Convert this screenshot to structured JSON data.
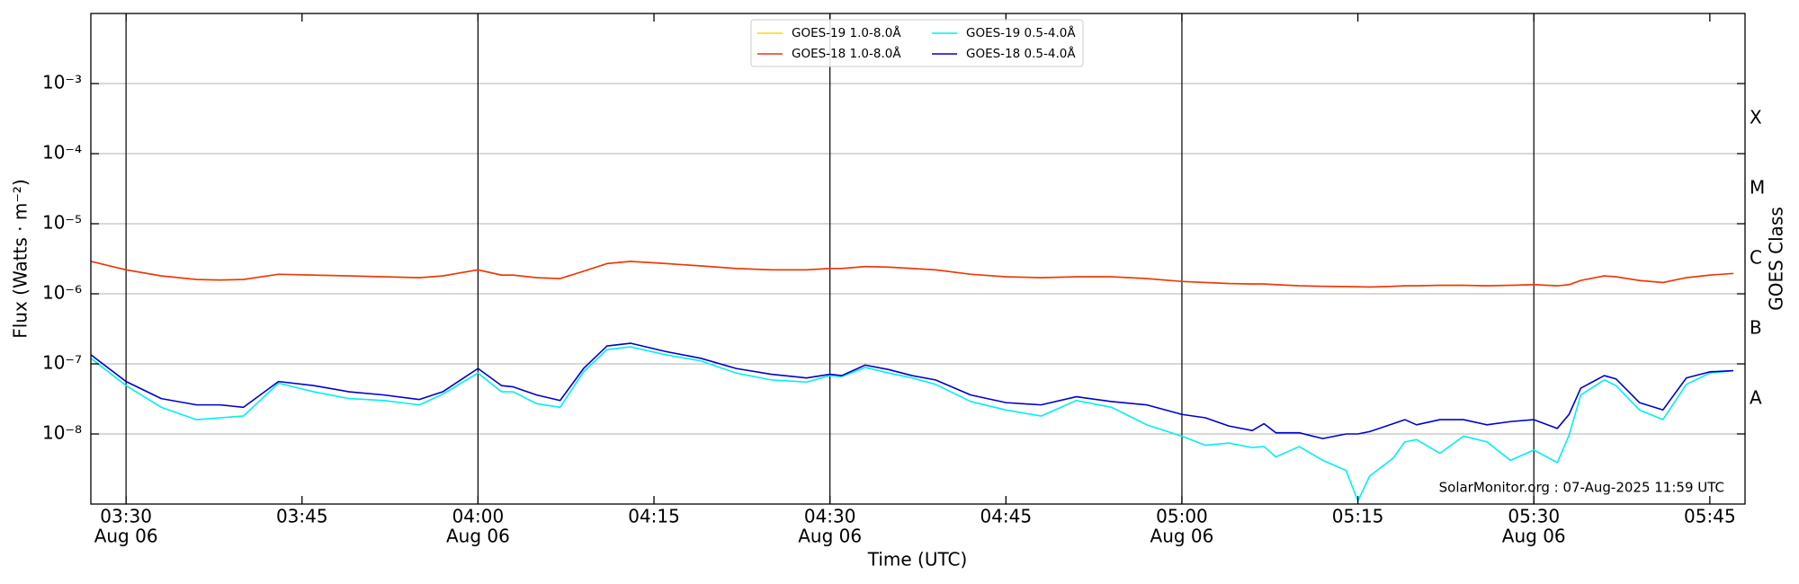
{
  "chart_data": {
    "type": "line",
    "xlabel": "Time (UTC)",
    "ylabel": "Flux (Watts · m⁻²)",
    "y2label": "GOES Class",
    "annotation": "SolarMonitor.org : 07-Aug-2025 11:59 UTC",
    "log_y": true,
    "grid": true,
    "legend": "upper center",
    "xlim": [
      "03:27",
      "05:48"
    ],
    "xticks": [
      {
        "value": "03:30",
        "label": "03:30",
        "date": "Aug 06"
      },
      {
        "value": "03:45",
        "label": "03:45"
      },
      {
        "value": "04:00",
        "label": "04:00",
        "date": "Aug 06"
      },
      {
        "value": "04:15",
        "label": "04:15"
      },
      {
        "value": "04:30",
        "label": "04:30",
        "date": "Aug 06"
      },
      {
        "value": "04:45",
        "label": "04:45"
      },
      {
        "value": "05:00",
        "label": "05:00",
        "date": "Aug 06"
      },
      {
        "value": "05:15",
        "label": "05:15"
      },
      {
        "value": "05:30",
        "label": "05:30",
        "date": "Aug 06"
      },
      {
        "value": "05:45",
        "label": "05:45"
      }
    ],
    "ylim": [
      1e-09,
      0.01
    ],
    "yticks": [
      {
        "value": 1e-08,
        "label": "10⁻⁸"
      },
      {
        "value": 1e-07,
        "label": "10⁻⁷"
      },
      {
        "value": 1e-06,
        "label": "10⁻⁶"
      },
      {
        "value": 1e-05,
        "label": "10⁻⁵"
      },
      {
        "value": 0.0001,
        "label": "10⁻⁴"
      },
      {
        "value": 0.001,
        "label": "10⁻³"
      }
    ],
    "y2lim": [
      1e-09,
      0.01
    ],
    "y2ticks": [
      {
        "value": 3.16e-08,
        "label": "A"
      },
      {
        "value": 3.16e-07,
        "label": "B"
      },
      {
        "value": 3.16e-06,
        "label": "C"
      },
      {
        "value": 3.16e-05,
        "label": "M"
      },
      {
        "value": 0.000316,
        "label": "X"
      }
    ],
    "x": [
      "03:27",
      "03:30",
      "03:33",
      "03:36",
      "03:38",
      "03:40",
      "03:43",
      "03:46",
      "03:49",
      "03:52",
      "03:55",
      "03:57",
      "04:00",
      "04:02",
      "04:03",
      "04:05",
      "04:07",
      "04:09",
      "04:11",
      "04:13",
      "04:16",
      "04:19",
      "04:22",
      "04:25",
      "04:28",
      "04:30",
      "04:31",
      "04:33",
      "04:35",
      "04:37",
      "04:39",
      "04:42",
      "04:45",
      "04:48",
      "04:51",
      "04:54",
      "04:57",
      "05:00",
      "05:02",
      "05:04",
      "05:06",
      "05:07",
      "05:08",
      "05:10",
      "05:12",
      "05:14",
      "05:15",
      "05:16",
      "05:18",
      "05:19",
      "05:20",
      "05:22",
      "05:24",
      "05:26",
      "05:28",
      "05:30",
      "05:32",
      "05:33",
      "05:34",
      "05:36",
      "05:37",
      "05:39",
      "05:41",
      "05:43",
      "05:45",
      "05:47"
    ],
    "series": [
      {
        "name": "GOES-19 1.0-8.0Å",
        "color": "#ffd700",
        "values": [
          2.9e-06,
          2.2e-06,
          1.8e-06,
          1.6e-06,
          1.57e-06,
          1.6e-06,
          1.9e-06,
          1.85e-06,
          1.8e-06,
          1.75e-06,
          1.7e-06,
          1.8e-06,
          2.2e-06,
          1.85e-06,
          1.85e-06,
          1.7e-06,
          1.65e-06,
          2.1e-06,
          2.7e-06,
          2.9e-06,
          2.7e-06,
          2.5e-06,
          2.3e-06,
          2.2e-06,
          2.2e-06,
          2.3e-06,
          2.3e-06,
          2.45e-06,
          2.4e-06,
          2.3e-06,
          2.2e-06,
          1.9e-06,
          1.75e-06,
          1.7e-06,
          1.75e-06,
          1.75e-06,
          1.65e-06,
          1.5e-06,
          1.45e-06,
          1.4e-06,
          1.38e-06,
          1.38e-06,
          1.35e-06,
          1.3e-06,
          1.28e-06,
          1.27e-06,
          1.26e-06,
          1.25e-06,
          1.28e-06,
          1.3e-06,
          1.3e-06,
          1.32e-06,
          1.32e-06,
          1.3e-06,
          1.32e-06,
          1.35e-06,
          1.3e-06,
          1.35e-06,
          1.55e-06,
          1.8e-06,
          1.75e-06,
          1.55e-06,
          1.45e-06,
          1.7e-06,
          1.85e-06,
          1.95e-06
        ]
      },
      {
        "name": "GOES-18 1.0-8.0Å",
        "color": "#ee3311",
        "values": [
          2.9e-06,
          2.2e-06,
          1.8e-06,
          1.6e-06,
          1.57e-06,
          1.6e-06,
          1.9e-06,
          1.85e-06,
          1.8e-06,
          1.75e-06,
          1.7e-06,
          1.8e-06,
          2.2e-06,
          1.85e-06,
          1.85e-06,
          1.7e-06,
          1.65e-06,
          2.1e-06,
          2.7e-06,
          2.9e-06,
          2.7e-06,
          2.5e-06,
          2.3e-06,
          2.2e-06,
          2.2e-06,
          2.3e-06,
          2.3e-06,
          2.45e-06,
          2.4e-06,
          2.3e-06,
          2.2e-06,
          1.9e-06,
          1.75e-06,
          1.7e-06,
          1.75e-06,
          1.75e-06,
          1.65e-06,
          1.5e-06,
          1.45e-06,
          1.4e-06,
          1.38e-06,
          1.38e-06,
          1.35e-06,
          1.3e-06,
          1.28e-06,
          1.27e-06,
          1.26e-06,
          1.25e-06,
          1.28e-06,
          1.3e-06,
          1.3e-06,
          1.32e-06,
          1.32e-06,
          1.3e-06,
          1.32e-06,
          1.35e-06,
          1.3e-06,
          1.35e-06,
          1.55e-06,
          1.8e-06,
          1.75e-06,
          1.55e-06,
          1.45e-06,
          1.7e-06,
          1.85e-06,
          1.95e-06
        ]
      },
      {
        "name": "GOES-19 0.5-4.0Å",
        "color": "#00f0f0",
        "values": [
          1.2e-07,
          4.9e-08,
          2.4e-08,
          1.6e-08,
          1.7e-08,
          1.8e-08,
          5.3e-08,
          4e-08,
          3.2e-08,
          3e-08,
          2.6e-08,
          3.7e-08,
          7.4e-08,
          4e-08,
          4e-08,
          2.7e-08,
          2.4e-08,
          7.7e-08,
          1.6e-07,
          1.75e-07,
          1.35e-07,
          1.1e-07,
          7.4e-08,
          5.9e-08,
          5.5e-08,
          6.8e-08,
          6.6e-08,
          8.9e-08,
          7.4e-08,
          6.3e-08,
          5.1e-08,
          2.9e-08,
          2.2e-08,
          1.8e-08,
          3e-08,
          2.4e-08,
          1.35e-08,
          9.3e-09,
          6.9e-09,
          7.4e-09,
          6.4e-09,
          6.6e-09,
          4.7e-09,
          6.6e-09,
          4.2e-09,
          3e-09,
          1.1e-09,
          2.5e-09,
          4.5e-09,
          7.7e-09,
          8.3e-09,
          5.3e-09,
          9.3e-09,
          7.7e-09,
          4.2e-09,
          5.9e-09,
          3.9e-09,
          9.6e-09,
          3.6e-08,
          5.9e-08,
          4.9e-08,
          2.2e-08,
          1.6e-08,
          5.1e-08,
          7.4e-08,
          8e-08
        ]
      },
      {
        "name": "GOES-18 0.5-4.0Å",
        "color": "#0000cc",
        "values": [
          1.35e-07,
          5.6e-08,
          3.2e-08,
          2.6e-08,
          2.6e-08,
          2.4e-08,
          5.6e-08,
          4.9e-08,
          4e-08,
          3.6e-08,
          3.1e-08,
          4e-08,
          8.6e-08,
          4.9e-08,
          4.7e-08,
          3.6e-08,
          3e-08,
          8.6e-08,
          1.8e-07,
          1.97e-07,
          1.5e-07,
          1.2e-07,
          8.6e-08,
          7.1e-08,
          6.3e-08,
          7.1e-08,
          6.8e-08,
          9.6e-08,
          8.3e-08,
          6.8e-08,
          5.9e-08,
          3.6e-08,
          2.8e-08,
          2.6e-08,
          3.4e-08,
          2.9e-08,
          2.6e-08,
          1.9e-08,
          1.7e-08,
          1.3e-08,
          1.12e-08,
          1.4e-08,
          1.04e-08,
          1.04e-08,
          8.6e-09,
          1e-08,
          1e-08,
          1.08e-08,
          1.4e-08,
          1.6e-08,
          1.35e-08,
          1.6e-08,
          1.6e-08,
          1.35e-08,
          1.5e-08,
          1.6e-08,
          1.2e-08,
          1.9e-08,
          4.5e-08,
          6.8e-08,
          6.1e-08,
          2.8e-08,
          2.2e-08,
          6.3e-08,
          7.7e-08,
          8e-08
        ]
      }
    ]
  }
}
